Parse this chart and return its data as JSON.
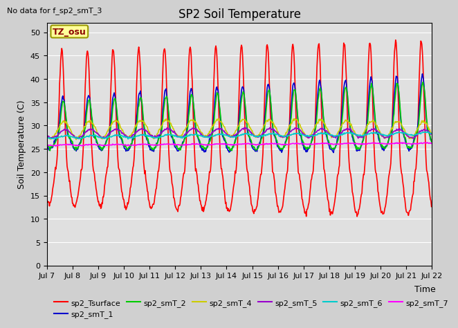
{
  "title": "SP2 Soil Temperature",
  "note": "No data for f_sp2_smT_3",
  "xlabel": "Time",
  "ylabel": "Soil Temperature (C)",
  "ylim": [
    0,
    52
  ],
  "yticks": [
    0,
    5,
    10,
    15,
    20,
    25,
    30,
    35,
    40,
    45,
    50
  ],
  "x_tick_labels": [
    "Jul 7",
    "Jul 8",
    "Jul 9",
    "Jul 10",
    "Jul 11",
    "Jul 12",
    "Jul 13",
    "Jul 14",
    "Jul 15",
    "Jul 16",
    "Jul 17",
    "Jul 18",
    "Jul 19",
    "Jul 20",
    "Jul 21",
    "Jul 22"
  ],
  "tz_label": "TZ_osu",
  "tz_box_color": "#FFFF99",
  "tz_box_edge": "#999900",
  "fig_bg_color": "#D0D0D0",
  "plot_bg_color": "#E0E0E0",
  "grid_color": "#FFFFFF",
  "series": [
    {
      "label": "sp2_Tsurface",
      "color": "#FF0000",
      "lw": 1.2
    },
    {
      "label": "sp2_smT_1",
      "color": "#0000CC",
      "lw": 1.2
    },
    {
      "label": "sp2_smT_2",
      "color": "#00CC00",
      "lw": 1.2
    },
    {
      "label": "sp2_smT_4",
      "color": "#CCCC00",
      "lw": 1.2
    },
    {
      "label": "sp2_smT_5",
      "color": "#9900CC",
      "lw": 1.2
    },
    {
      "label": "sp2_smT_6",
      "color": "#00CCCC",
      "lw": 1.2
    },
    {
      "label": "sp2_smT_7",
      "color": "#FF00FF",
      "lw": 1.2
    }
  ],
  "title_fontsize": 12,
  "axis_label_fontsize": 9,
  "tick_fontsize": 8,
  "legend_fontsize": 8
}
